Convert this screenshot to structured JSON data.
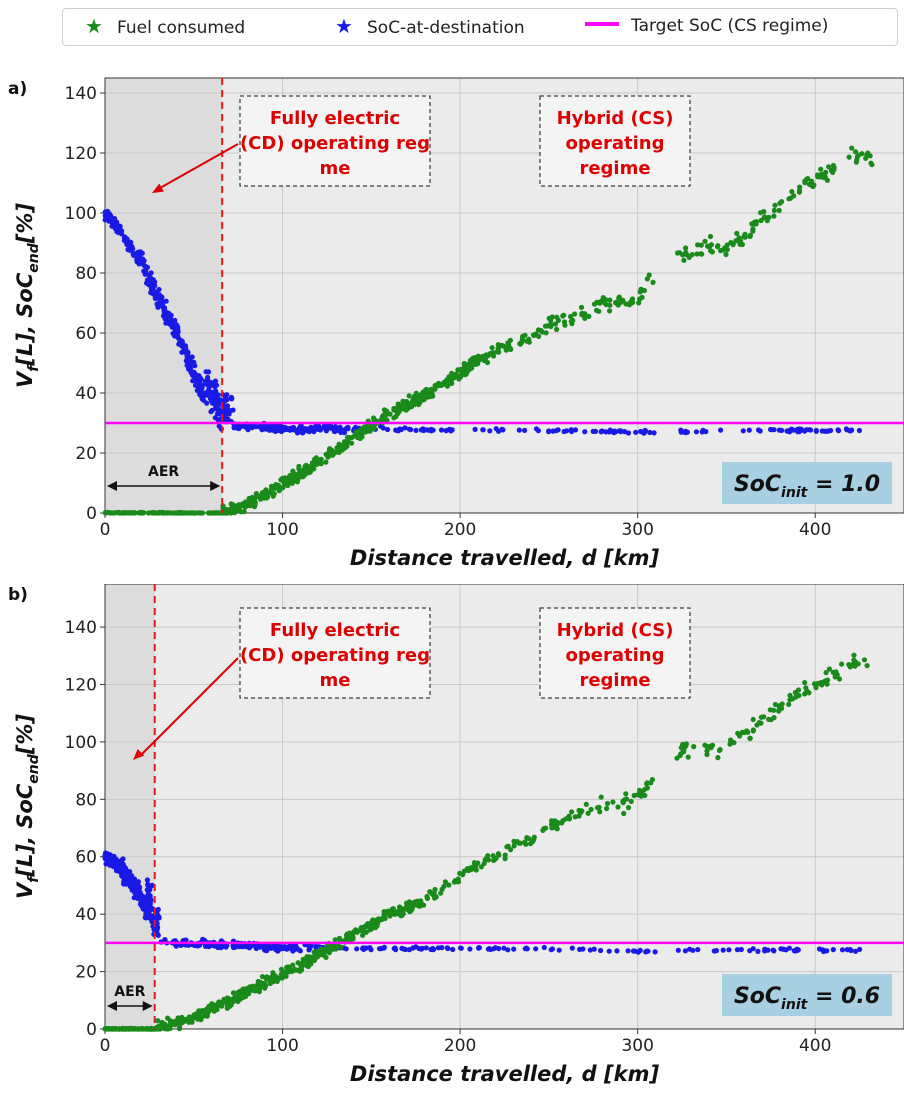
{
  "legend": {
    "items": [
      {
        "label": "Fuel consumed",
        "color": "#1a8a1a",
        "marker": "star"
      },
      {
        "label": "SoC-at-destination",
        "color": "#1a1ae6",
        "marker": "star"
      },
      {
        "label": "Target SoC (CS regime)",
        "color": "#ff00ff",
        "marker": "line"
      }
    ]
  },
  "colors": {
    "fuel": "#1a8a1a",
    "soc": "#1a1ae6",
    "target": "#ff00ff",
    "aer_line": "#e31a1c",
    "annotation": "#dd0000",
    "cd_shade": "#dcdcdc",
    "plot_bg": "#ebebeb",
    "soc_box": "#a9cfe3"
  },
  "chart_data": [
    {
      "type": "scatter",
      "panel_label": "a)",
      "xlabel": "Distance travelled, d [km]",
      "ylabel": "V_f[L], SoC_end[%]",
      "xlim": [
        0,
        450
      ],
      "ylim": [
        0,
        145
      ],
      "xticks": [
        0,
        100,
        200,
        300,
        400
      ],
      "yticks": [
        0,
        20,
        40,
        60,
        80,
        100,
        120,
        140
      ],
      "grid": true,
      "aer_km": 66,
      "target_soc": 30,
      "soc_init_label": "SoC_init = 1.0",
      "annotations": [
        "Fully electric (CD) operating regime",
        "Hybrid (CS) operating regime"
      ],
      "aer_label": "AER",
      "series": [
        {
          "name": "Fuel consumed",
          "points": [
            [
              0,
              0
            ],
            [
              20,
              0
            ],
            [
              40,
              0
            ],
            [
              55,
              0
            ],
            [
              66,
              0
            ],
            [
              70,
              1
            ],
            [
              80,
              3
            ],
            [
              90,
              6
            ],
            [
              100,
              10
            ],
            [
              110,
              13
            ],
            [
              120,
              17
            ],
            [
              130,
              21
            ],
            [
              140,
              25
            ],
            [
              150,
              29
            ],
            [
              160,
              33
            ],
            [
              170,
              36
            ],
            [
              180,
              39
            ],
            [
              190,
              43
            ],
            [
              200,
              47
            ],
            [
              210,
              51
            ],
            [
              220,
              54
            ],
            [
              230,
              56
            ],
            [
              240,
              59
            ],
            [
              250,
              62
            ],
            [
              260,
              64
            ],
            [
              270,
              66
            ],
            [
              280,
              70
            ],
            [
              290,
              70
            ],
            [
              300,
              72
            ],
            [
              305,
              76
            ],
            [
              320,
              85
            ],
            [
              330,
              88
            ],
            [
              340,
              89
            ],
            [
              350,
              88
            ],
            [
              360,
              92
            ],
            [
              370,
              98
            ],
            [
              380,
              103
            ],
            [
              390,
              108
            ],
            [
              400,
              111
            ],
            [
              410,
              115
            ],
            [
              420,
              119
            ],
            [
              430,
              119
            ]
          ]
        },
        {
          "name": "SoC-at-destination",
          "points": [
            [
              0,
              100
            ],
            [
              5,
              97
            ],
            [
              10,
              93
            ],
            [
              15,
              88
            ],
            [
              20,
              84
            ],
            [
              25,
              78
            ],
            [
              30,
              72
            ],
            [
              35,
              66
            ],
            [
              40,
              61
            ],
            [
              45,
              54
            ],
            [
              50,
              47
            ],
            [
              55,
              40
            ],
            [
              60,
              34
            ],
            [
              66,
              30
            ],
            [
              70,
              29
            ],
            [
              100,
              28
            ],
            [
              150,
              28
            ],
            [
              200,
              27.5
            ],
            [
              250,
              27.5
            ],
            [
              300,
              27
            ],
            [
              330,
              27
            ],
            [
              350,
              27.5
            ],
            [
              400,
              27.5
            ],
            [
              430,
              27.5
            ]
          ]
        },
        {
          "name": "Target SoC (CS regime)",
          "points": [
            [
              0,
              30
            ],
            [
              450,
              30
            ]
          ]
        }
      ]
    },
    {
      "type": "scatter",
      "panel_label": "b)",
      "xlabel": "Distance travelled, d [km]",
      "ylabel": "V_f[L], SoC_end[%]",
      "xlim": [
        0,
        450
      ],
      "ylim": [
        0,
        155
      ],
      "xticks": [
        0,
        100,
        200,
        300,
        400
      ],
      "yticks": [
        0,
        20,
        40,
        60,
        80,
        100,
        120,
        140
      ],
      "grid": true,
      "aer_km": 28,
      "target_soc": 30,
      "soc_init_label": "SoC_init = 0.6",
      "annotations": [
        "Fully electric (CD) operating regime",
        "Hybrid (CS) operating regime"
      ],
      "aer_label": "AER",
      "series": [
        {
          "name": "Fuel consumed",
          "points": [
            [
              0,
              0
            ],
            [
              20,
              0
            ],
            [
              28,
              0
            ],
            [
              40,
              2
            ],
            [
              50,
              4
            ],
            [
              60,
              7
            ],
            [
              70,
              10
            ],
            [
              80,
              13
            ],
            [
              90,
              16
            ],
            [
              100,
              19
            ],
            [
              110,
              22
            ],
            [
              120,
              26
            ],
            [
              130,
              29
            ],
            [
              140,
              33
            ],
            [
              150,
              36
            ],
            [
              160,
              40
            ],
            [
              170,
              42
            ],
            [
              180,
              45
            ],
            [
              190,
              49
            ],
            [
              200,
              53
            ],
            [
              210,
              57
            ],
            [
              220,
              60
            ],
            [
              230,
              63
            ],
            [
              240,
              66
            ],
            [
              250,
              70
            ],
            [
              260,
              73
            ],
            [
              270,
              76
            ],
            [
              280,
              78
            ],
            [
              290,
              78
            ],
            [
              300,
              81
            ],
            [
              305,
              84
            ],
            [
              320,
              96
            ],
            [
              330,
              98
            ],
            [
              340,
              98
            ],
            [
              350,
              97
            ],
            [
              360,
              103
            ],
            [
              370,
              107
            ],
            [
              380,
              112
            ],
            [
              390,
              117
            ],
            [
              400,
              120
            ],
            [
              410,
              123
            ],
            [
              420,
              127
            ],
            [
              430,
              127
            ]
          ]
        },
        {
          "name": "SoC-at-destination",
          "points": [
            [
              0,
              60
            ],
            [
              5,
              58
            ],
            [
              10,
              55
            ],
            [
              15,
              51
            ],
            [
              20,
              46
            ],
            [
              25,
              40
            ],
            [
              28,
              32
            ],
            [
              35,
              30
            ],
            [
              50,
              30
            ],
            [
              100,
              28.5
            ],
            [
              150,
              28
            ],
            [
              200,
              28
            ],
            [
              250,
              28
            ],
            [
              300,
              27
            ],
            [
              330,
              27.5
            ],
            [
              350,
              27.5
            ],
            [
              400,
              27.5
            ],
            [
              430,
              27.5
            ]
          ]
        },
        {
          "name": "Target SoC (CS regime)",
          "points": [
            [
              0,
              30
            ],
            [
              450,
              30
            ]
          ]
        }
      ]
    }
  ]
}
